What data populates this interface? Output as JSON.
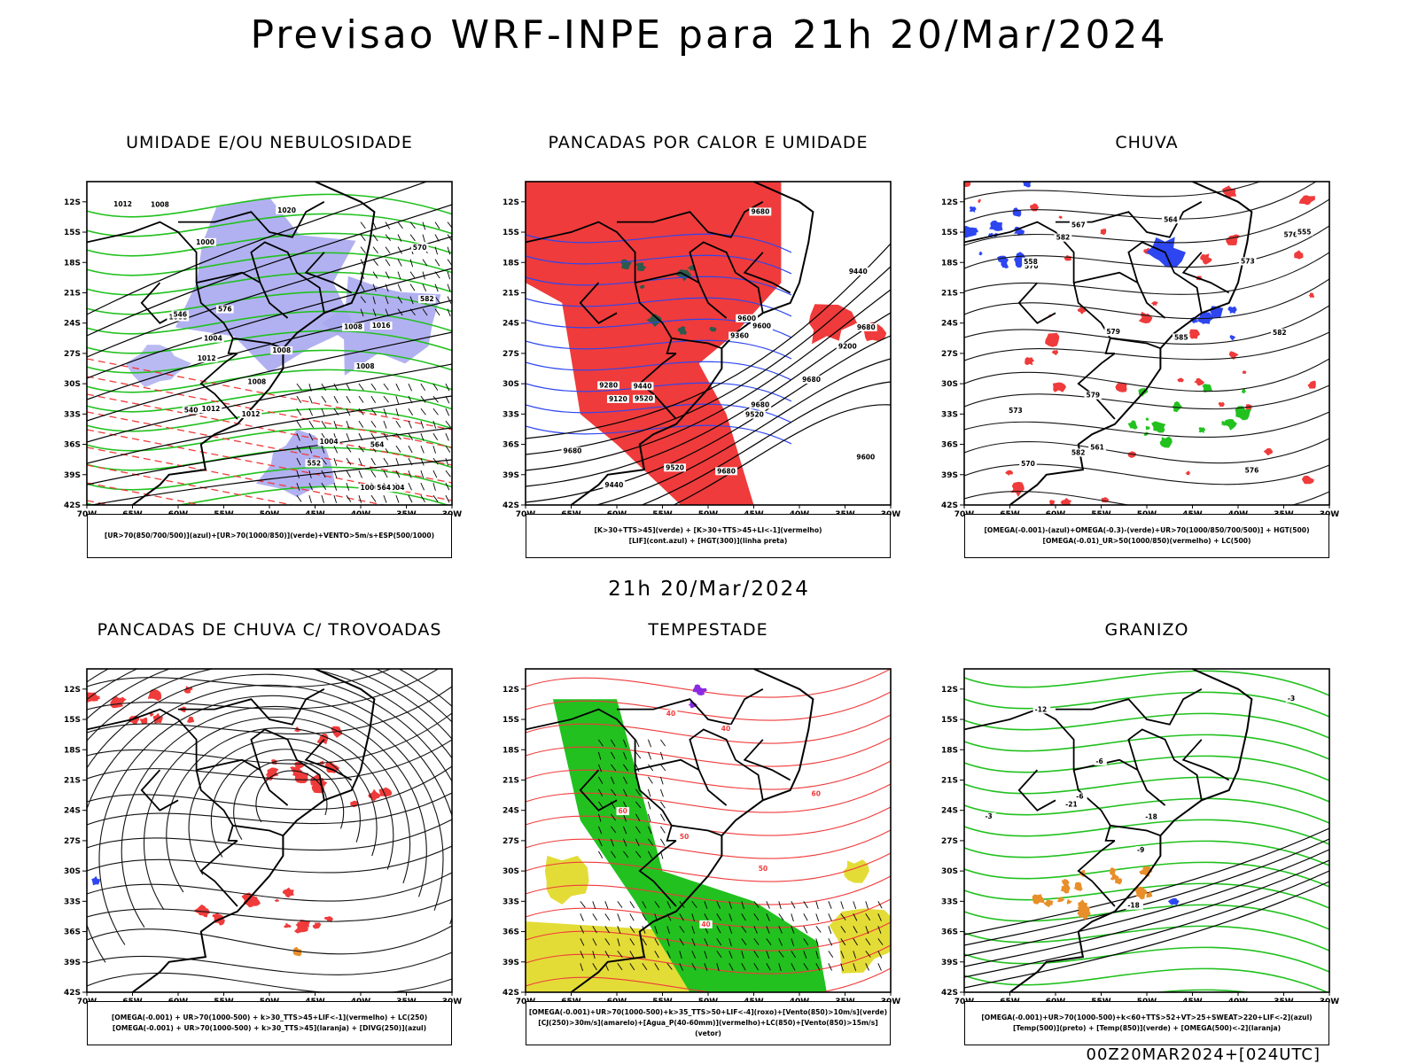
{
  "header": {
    "title": "Previsao WRF-INPE  para 21h 20/Mar/2024"
  },
  "middle": {
    "subtitle": "21h 20/Mar/2024"
  },
  "footer": {
    "run": "00Z20MAR2024+[024UTC]"
  },
  "axes": {
    "lat_ticks": [
      "12S",
      "15S",
      "18S",
      "21S",
      "24S",
      "27S",
      "30S",
      "33S",
      "36S",
      "39S",
      "42S"
    ],
    "lon_ticks": [
      "70W",
      "65W",
      "60W",
      "55W",
      "50W",
      "45W",
      "40W",
      "35W",
      "30W"
    ]
  },
  "colors": {
    "red": "#ef3b3b",
    "green": "#22c11f",
    "blue": "#2d46f0",
    "lavender": "#a9a9f0",
    "yellow": "#e3dc37",
    "orange": "#e88f2a",
    "purple": "#8a2be2",
    "darkgreen": "#2d5a4d"
  },
  "chart_data": [
    {
      "type": "map",
      "title": "UMIDADE E/OU NEBULOSIDADE",
      "legend": [
        "[UR>70(850/700/500)](azul)+[UR>70(1000/850)](verde)+VENTO>5m/s+ESP(500/1000)"
      ],
      "contour_labels": [
        "1008",
        "1008",
        "1008",
        "1008",
        "1004",
        "1000",
        "1012",
        "1012",
        "1012",
        "1008",
        "1016",
        "1020",
        "1012",
        "1000",
        "1004",
        "1004",
        "1008",
        "582",
        "570",
        "576",
        "564",
        "546",
        "552",
        "540",
        "564"
      ]
    },
    {
      "type": "map",
      "title": "PANCADAS POR CALOR E UMIDADE",
      "legend": [
        "[K>30+TTS>45](verde) + [K>30+TTS>45+LI<-1](vermelho)",
        "[LIF](cont.azul) + [HGT(300)](linha preta)"
      ],
      "contour_labels": [
        "9680",
        "9680",
        "9680",
        "9600",
        "9680",
        "9680",
        "9680",
        "9520",
        "9600",
        "9600",
        "9520",
        "9440",
        "9440",
        "9360",
        "9280",
        "9200",
        "9120",
        "9520",
        "9440"
      ]
    },
    {
      "type": "map",
      "title": "CHUVA",
      "legend": [
        "[OMEGA(-0.001)-(azul)+OMEGA(-0.3)-(verde)+UR>70(1000/850/700/500)] + HGT(500)",
        "[OMEGA(-0.01)_UR>50(1000/850)(vermelho) + LC(500)"
      ],
      "contour_labels": [
        "582",
        "582",
        "579",
        "576",
        "573",
        "570",
        "585",
        "582",
        "579",
        "576",
        "573",
        "567",
        "558",
        "555",
        "561",
        "564",
        "570"
      ]
    },
    {
      "type": "map",
      "title": "PANCADAS DE CHUVA C/ TROVOADAS",
      "legend": [
        "[OMEGA(-0.001) + UR>70(1000-500) + k>30_TTS>45+LIF<-1](vermelho) + LC(250)",
        "[OMEGA(-0.001) + UR>70(1000-500) + k>30_TTS>45](laranja) + [DIVG(250)](azul)"
      ],
      "contour_labels": []
    },
    {
      "type": "map",
      "title": "TEMPESTADE",
      "legend": [
        "[OMEGA(-0.001)+UR>70(1000-500)+k>35_TTS>50+LIF<-4](roxo)+[Vento(850)>10m/s](verde)",
        "[CJ(250)>30m/s](amarelo)+[Agua_P(40-60mm)](vermelho)+LC(850)+[Vento(850)>15m/s](vetor)"
      ],
      "contour_labels": [
        "60",
        "40",
        "40",
        "50",
        "40",
        "50",
        "60"
      ]
    },
    {
      "type": "map",
      "title": "GRANIZO",
      "legend": [
        "[OMEGA(-0.001)+UR>70(1000-500)+k<60+TTS>52+VT>25+SWEAT>220+LIF<-2](azul)",
        "[Temp(500)](preto) + [Temp(850)](verde) + [OMEGA(500)<-2](laranja)"
      ],
      "contour_labels": [
        "-3",
        "-6",
        "-3",
        "-6",
        "-9",
        "-12",
        "-18",
        "-21",
        "-18"
      ]
    }
  ]
}
